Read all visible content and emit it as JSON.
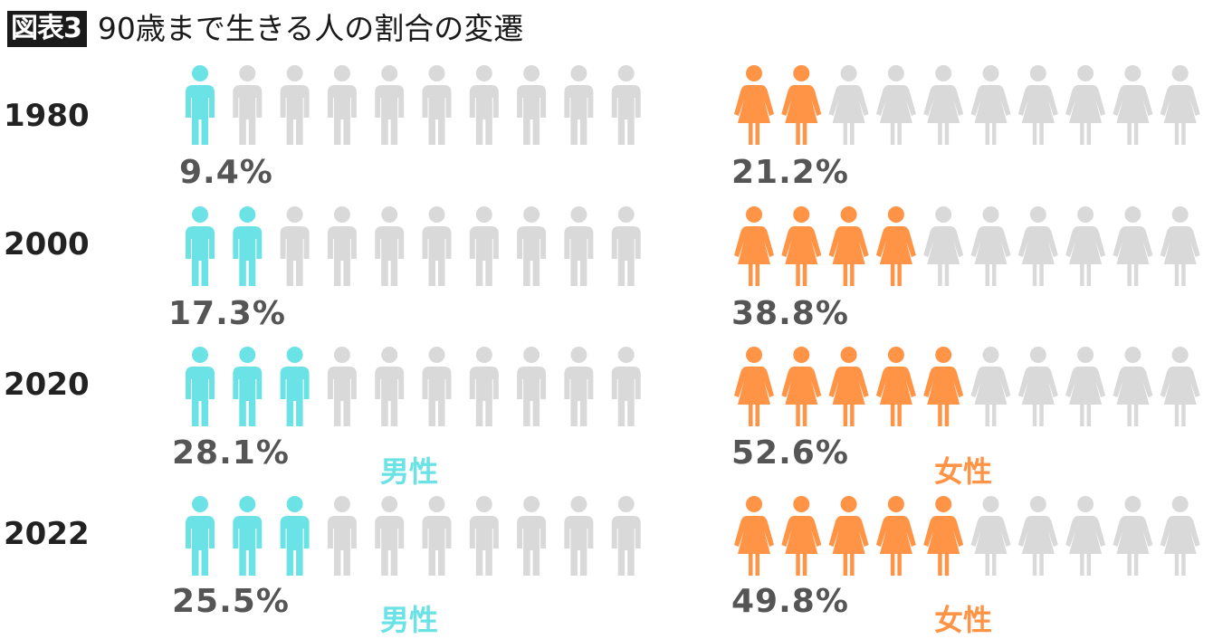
{
  "header": {
    "badge": "図表3",
    "title": "90歳まで生きる人の割合の変遷"
  },
  "colors": {
    "male": "#6be3e6",
    "female": "#ff9447",
    "inactive": "#d9d9d9"
  },
  "icons_per_row": 10,
  "chart_data": {
    "type": "pictogram",
    "title": "90歳まで生きる人の割合の変遷",
    "unit": "%",
    "categories": [
      "1980",
      "2000",
      "2020",
      "2022"
    ],
    "series": [
      {
        "name": "男性",
        "values": [
          9.4,
          17.3,
          28.1,
          25.5
        ],
        "labels": [
          "9.4%",
          "17.3%",
          "28.1%",
          "25.5%"
        ],
        "filled_icons": [
          1,
          2,
          3,
          3
        ]
      },
      {
        "name": "女性",
        "values": [
          21.2,
          38.8,
          52.6,
          49.8
        ],
        "labels": [
          "21.2%",
          "38.8%",
          "52.6%",
          "49.8%"
        ],
        "filled_icons": [
          2,
          4,
          5,
          5
        ]
      }
    ]
  }
}
